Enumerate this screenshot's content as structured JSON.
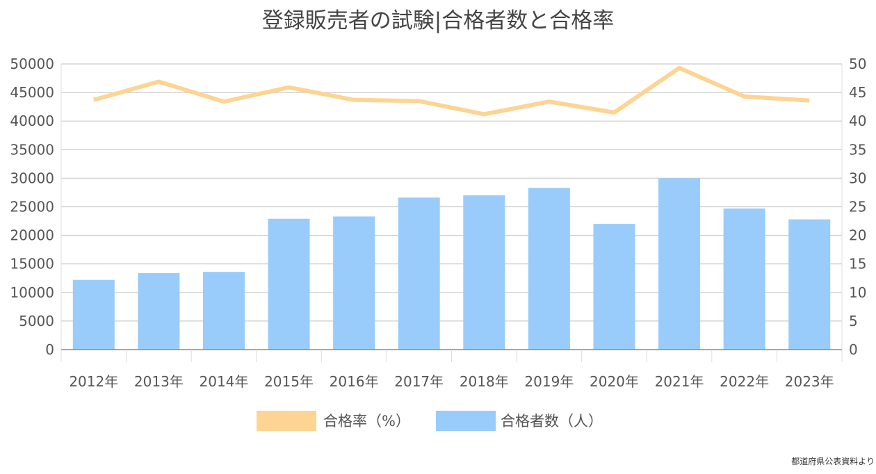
{
  "chart_data": {
    "type": "bar",
    "title": "登録販売者の試験|合格者数と合格率",
    "categories": [
      "2012年",
      "2013年",
      "2014年",
      "2015年",
      "2016年",
      "2017年",
      "2018年",
      "2019年",
      "2020年",
      "2021年",
      "2022年",
      "2023年"
    ],
    "series": [
      {
        "name": "合格率（%）",
        "type": "line",
        "axis": "right",
        "color": "#fdd493",
        "values": [
          43.7,
          46.9,
          43.4,
          45.9,
          43.7,
          43.5,
          41.2,
          43.4,
          41.5,
          49.3,
          44.3,
          43.6
        ]
      },
      {
        "name": "合格者数（人）",
        "type": "bar",
        "axis": "left",
        "color": "#99ccfa",
        "values": [
          12200,
          13400,
          13600,
          22900,
          23300,
          26600,
          27000,
          28300,
          22000,
          30000,
          24700,
          22800
        ]
      }
    ],
    "y_left": {
      "min": 0,
      "max": 50000,
      "step": 5000
    },
    "y_right": {
      "min": 0,
      "max": 50,
      "step": 5
    },
    "grid": true,
    "legend_position": "bottom"
  },
  "source_note": "都道府県公表資料より"
}
